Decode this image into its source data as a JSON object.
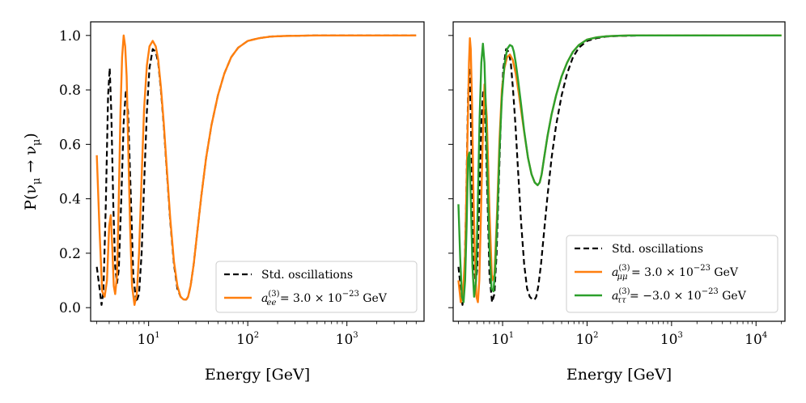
{
  "chart_data": [
    {
      "type": "line",
      "panel": "left",
      "xscale": "log",
      "xlim": [
        2.6,
        6000
      ],
      "ylim": [
        -0.05,
        1.05
      ],
      "xlabel": "Energy [GeV]",
      "ylabel": "P(ν_μ → ν_μ)",
      "xticks": [
        {
          "value": 10,
          "base": "10",
          "exp": "1"
        },
        {
          "value": 100,
          "base": "10",
          "exp": "2"
        },
        {
          "value": 1000,
          "base": "10",
          "exp": "3"
        }
      ],
      "yticks": [
        "0.0",
        "0.2",
        "0.4",
        "0.6",
        "0.8",
        "1.0"
      ],
      "legend_position": "lower-right",
      "series": [
        {
          "name": "Std. oscillations",
          "style": "dashed",
          "color": "#000000",
          "x": [
            3.0,
            3.2,
            3.35,
            3.5,
            3.7,
            3.9,
            4.05,
            4.2,
            4.4,
            4.6,
            4.8,
            5.0,
            5.3,
            5.6,
            5.9,
            6.2,
            6.6,
            7.0,
            7.5,
            8.0,
            8.5,
            9.0,
            9.6,
            10.2,
            11.0,
            11.8,
            12.5,
            13.3,
            14.2,
            15.2,
            16.5,
            18.0,
            19.5,
            21.0,
            22.5,
            24.0,
            25.0,
            26.5,
            28.5,
            31.0,
            34.0,
            38.0,
            43.0,
            50.0,
            58.0,
            68.0,
            80.0,
            100.0,
            130.0,
            170.0,
            230.0,
            320.0,
            500.0,
            800.0,
            1500.0,
            3000.0,
            5000.0
          ],
          "y": [
            0.15,
            0.07,
            0.01,
            0.06,
            0.38,
            0.78,
            0.88,
            0.72,
            0.38,
            0.15,
            0.09,
            0.14,
            0.4,
            0.68,
            0.8,
            0.72,
            0.42,
            0.12,
            0.02,
            0.05,
            0.2,
            0.45,
            0.72,
            0.88,
            0.95,
            0.94,
            0.9,
            0.8,
            0.67,
            0.51,
            0.32,
            0.16,
            0.07,
            0.04,
            0.03,
            0.03,
            0.04,
            0.08,
            0.16,
            0.28,
            0.41,
            0.55,
            0.67,
            0.78,
            0.86,
            0.92,
            0.955,
            0.98,
            0.99,
            0.996,
            0.998,
            0.999,
            1.0,
            1.0,
            1.0,
            1.0,
            1.0
          ]
        },
        {
          "name": "a_ee^(3) = 3.0 × 10^-23 GeV",
          "style": "solid",
          "color": "#ff7f0e",
          "x": [
            3.0,
            3.2,
            3.4,
            3.6,
            3.8,
            4.0,
            4.15,
            4.3,
            4.45,
            4.6,
            4.8,
            5.0,
            5.2,
            5.4,
            5.6,
            5.8,
            6.0,
            6.2,
            6.5,
            6.8,
            7.2,
            7.6,
            8.0,
            8.5,
            9.0,
            9.6,
            10.2,
            11.0,
            11.8,
            12.5,
            13.3,
            14.2,
            15.2,
            16.5,
            18.0,
            19.5,
            21.0,
            22.5,
            24.0,
            25.0,
            26.5,
            28.5,
            31.0,
            34.0,
            38.0,
            43.0,
            50.0,
            58.0,
            68.0,
            80.0,
            100.0,
            130.0,
            170.0,
            230.0,
            320.0,
            500.0,
            800.0,
            1500.0,
            3000.0,
            5000.0
          ],
          "y": [
            0.56,
            0.28,
            0.06,
            0.04,
            0.1,
            0.3,
            0.34,
            0.22,
            0.08,
            0.05,
            0.12,
            0.4,
            0.72,
            0.92,
            1.0,
            0.96,
            0.85,
            0.62,
            0.3,
            0.08,
            0.01,
            0.05,
            0.2,
            0.48,
            0.73,
            0.89,
            0.96,
            0.98,
            0.96,
            0.91,
            0.81,
            0.68,
            0.52,
            0.33,
            0.17,
            0.08,
            0.04,
            0.03,
            0.03,
            0.04,
            0.08,
            0.16,
            0.28,
            0.41,
            0.55,
            0.67,
            0.78,
            0.86,
            0.92,
            0.955,
            0.98,
            0.99,
            0.996,
            0.998,
            0.999,
            1.0,
            1.0,
            1.0,
            1.0,
            1.0
          ]
        }
      ],
      "legend": [
        {
          "style": "dashed",
          "color": "#000000",
          "label": "Std. oscillations"
        },
        {
          "style": "solid",
          "color": "#ff7f0e",
          "sym": "a",
          "sub": "ee",
          "sup": "(3)",
          "rest": " = 3.0 × 10",
          "exp": "−23",
          "unit": " GeV"
        }
      ]
    },
    {
      "type": "line",
      "panel": "right",
      "xscale": "log",
      "xlim": [
        2.6,
        22000
      ],
      "ylim": [
        -0.05,
        1.05
      ],
      "xlabel": "Energy [GeV]",
      "xticks": [
        {
          "value": 10,
          "base": "10",
          "exp": "1"
        },
        {
          "value": 100,
          "base": "10",
          "exp": "2"
        },
        {
          "value": 1000,
          "base": "10",
          "exp": "3"
        },
        {
          "value": 10000,
          "base": "10",
          "exp": "4"
        }
      ],
      "legend_position": "lower-right",
      "series": [
        {
          "name": "Std. oscillations",
          "style": "dashed",
          "color": "#000000",
          "x": [
            3.0,
            3.2,
            3.35,
            3.5,
            3.7,
            3.9,
            4.05,
            4.2,
            4.4,
            4.6,
            4.8,
            5.0,
            5.3,
            5.6,
            5.9,
            6.2,
            6.6,
            7.0,
            7.5,
            8.0,
            8.5,
            9.0,
            9.6,
            10.2,
            11.0,
            11.8,
            12.5,
            13.3,
            14.2,
            15.2,
            16.5,
            18.0,
            19.5,
            21.0,
            22.5,
            24.0,
            25.0,
            26.5,
            28.5,
            31.0,
            34.0,
            38.0,
            43.0,
            50.0,
            58.0,
            68.0,
            80.0,
            100.0,
            130.0,
            170.0,
            230.0,
            320.0,
            500.0,
            800.0,
            1500.0,
            3000.0,
            6000.0,
            12000.0,
            20000.0
          ],
          "y": [
            0.15,
            0.07,
            0.01,
            0.06,
            0.38,
            0.78,
            0.88,
            0.72,
            0.38,
            0.15,
            0.09,
            0.14,
            0.4,
            0.68,
            0.8,
            0.72,
            0.42,
            0.12,
            0.02,
            0.05,
            0.2,
            0.45,
            0.72,
            0.88,
            0.95,
            0.94,
            0.9,
            0.8,
            0.67,
            0.51,
            0.32,
            0.16,
            0.07,
            0.04,
            0.03,
            0.03,
            0.04,
            0.08,
            0.16,
            0.28,
            0.41,
            0.55,
            0.67,
            0.78,
            0.86,
            0.92,
            0.955,
            0.98,
            0.99,
            0.996,
            0.998,
            0.999,
            1.0,
            1.0,
            1.0,
            1.0,
            1.0,
            1.0,
            1.0
          ]
        },
        {
          "name": "a_μμ^(3) = 3.0 × 10^-23 GeV",
          "style": "solid",
          "color": "#ff7f0e",
          "x": [
            3.0,
            3.2,
            3.4,
            3.6,
            3.8,
            4.0,
            4.1,
            4.2,
            4.35,
            4.5,
            4.7,
            4.9,
            5.1,
            5.3,
            5.5,
            5.8,
            6.1,
            6.5,
            7.0,
            7.5,
            8.0,
            8.6,
            9.2,
            9.8,
            10.5,
            11.3,
            12.2,
            13.2,
            14.3,
            15.5,
            17.0,
            18.5,
            20.0,
            22.0,
            24.0,
            26.0,
            27.5,
            29.0,
            31.0,
            34.0,
            38.0,
            43.0,
            50.0,
            58.0,
            68.0,
            80.0,
            100.0,
            130.0,
            170.0,
            230.0,
            320.0,
            500.0,
            1000.0,
            3000.0,
            8000.0,
            20000.0
          ],
          "y": [
            0.1,
            0.02,
            0.05,
            0.2,
            0.55,
            0.9,
            0.99,
            0.95,
            0.75,
            0.45,
            0.18,
            0.04,
            0.02,
            0.1,
            0.3,
            0.6,
            0.82,
            0.7,
            0.35,
            0.1,
            0.12,
            0.35,
            0.62,
            0.8,
            0.88,
            0.92,
            0.93,
            0.91,
            0.86,
            0.79,
            0.7,
            0.62,
            0.55,
            0.49,
            0.46,
            0.45,
            0.46,
            0.49,
            0.55,
            0.63,
            0.71,
            0.78,
            0.85,
            0.9,
            0.94,
            0.965,
            0.985,
            0.993,
            0.997,
            0.999,
            1.0,
            1.0,
            1.0,
            1.0,
            1.0,
            1.0
          ]
        },
        {
          "name": "a_ττ^(3) = -3.0 × 10^-23 GeV",
          "style": "solid",
          "color": "#2ca02c",
          "x": [
            3.0,
            3.15,
            3.3,
            3.45,
            3.6,
            3.75,
            3.9,
            4.05,
            4.2,
            4.4,
            4.6,
            4.85,
            5.1,
            5.35,
            5.6,
            5.85,
            6.1,
            6.35,
            6.6,
            7.0,
            7.4,
            7.8,
            8.2,
            8.7,
            9.2,
            9.8,
            10.5,
            11.3,
            12.2,
            13.0,
            13.6,
            14.3,
            15.2,
            16.5,
            18.0,
            20.0,
            22.0,
            24.0,
            26.0,
            27.5,
            29.0,
            31.0,
            34.0,
            38.0,
            43.0,
            50.0,
            58.0,
            68.0,
            80.0,
            100.0,
            130.0,
            170.0,
            230.0,
            320.0,
            500.0,
            1000.0,
            3000.0,
            8000.0,
            20000.0
          ],
          "y": [
            0.38,
            0.18,
            0.04,
            0.02,
            0.1,
            0.3,
            0.55,
            0.57,
            0.4,
            0.15,
            0.04,
            0.1,
            0.4,
            0.7,
            0.9,
            0.97,
            0.9,
            0.72,
            0.5,
            0.22,
            0.07,
            0.06,
            0.15,
            0.35,
            0.58,
            0.77,
            0.89,
            0.95,
            0.965,
            0.96,
            0.94,
            0.9,
            0.84,
            0.75,
            0.65,
            0.55,
            0.49,
            0.46,
            0.45,
            0.46,
            0.49,
            0.55,
            0.63,
            0.71,
            0.78,
            0.85,
            0.9,
            0.94,
            0.965,
            0.985,
            0.993,
            0.997,
            0.999,
            1.0,
            1.0,
            1.0,
            1.0,
            1.0,
            1.0
          ]
        }
      ],
      "legend": [
        {
          "style": "dashed",
          "color": "#000000",
          "label": "Std. oscillations"
        },
        {
          "style": "solid",
          "color": "#ff7f0e",
          "sym": "a",
          "sub": "μμ",
          "sup": "(3)",
          "rest": " = 3.0 × 10",
          "exp": "−23",
          "unit": " GeV"
        },
        {
          "style": "solid",
          "color": "#2ca02c",
          "sym": "a",
          "sub": "ττ",
          "sup": "(3)",
          "rest": " = −3.0 × 10",
          "exp": "−23",
          "unit": " GeV"
        }
      ]
    }
  ]
}
